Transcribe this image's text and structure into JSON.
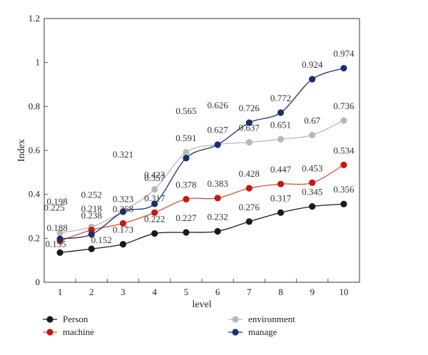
{
  "chart_data": {
    "type": "line",
    "title": "",
    "xlabel": "level",
    "ylabel": "Index",
    "x": [
      1,
      2,
      3,
      4,
      5,
      6,
      7,
      8,
      9,
      10
    ],
    "x_tick_labels": [
      "1",
      "2",
      "3",
      "4",
      "5",
      "6",
      "7",
      "8",
      "9",
      "10"
    ],
    "y_ticks": [
      0,
      0.2,
      0.4,
      0.6,
      0.8,
      1,
      1.2
    ],
    "y_tick_labels": [
      "0",
      "0.2",
      "0.4",
      "0.6",
      "0.8",
      "1",
      "1.2"
    ],
    "ylim": [
      0,
      1.2
    ],
    "xlim": [
      0.5,
      10.5
    ],
    "grid": false,
    "legend_position": "bottom",
    "series": [
      {
        "name": "Person",
        "color": "#1a1a1a",
        "values": [
          0.135,
          0.152,
          0.173,
          0.222,
          0.227,
          0.232,
          0.276,
          0.317,
          0.345,
          0.356
        ]
      },
      {
        "name": "machine",
        "color": "#c8170f",
        "line_color": "#d9502e",
        "values": [
          0.188,
          0.238,
          0.268,
          0.317,
          0.378,
          0.383,
          0.428,
          0.447,
          0.453,
          0.534
        ]
      },
      {
        "name": "environment",
        "color": "#b8b8b8",
        "values": [
          0.225,
          0.252,
          0.323,
          0.423,
          0.591,
          0.627,
          0.637,
          0.651,
          0.67,
          0.736
        ]
      },
      {
        "name": "manage",
        "color": "#1b2f6e",
        "values": [
          0.198,
          0.218,
          0.321,
          0.357,
          0.565,
          0.626,
          0.726,
          0.772,
          0.924,
          0.974
        ]
      }
    ],
    "data_labels": {
      "Person": [
        "0.135",
        "0.152",
        "0.173",
        "0.222",
        "0.227",
        "0.232",
        "0.276",
        "0.317",
        "0.345",
        "0.356"
      ],
      "machine": [
        "0.188",
        "0.238",
        "0.268",
        "0.317",
        "0.378",
        "0.383",
        "0.428",
        "0.447",
        "0.453",
        "0.534"
      ],
      "environment": [
        "0.225",
        "0.252",
        "0.323",
        "0.423",
        "0.591",
        "0.627",
        "0.637",
        "0.651",
        "0.67",
        "0.736"
      ],
      "manage": [
        "0.198",
        "0.218",
        "0.321",
        "0.357",
        "0.565",
        "0.626",
        "0.726",
        "0.772",
        "0.924",
        "0.974"
      ]
    }
  }
}
